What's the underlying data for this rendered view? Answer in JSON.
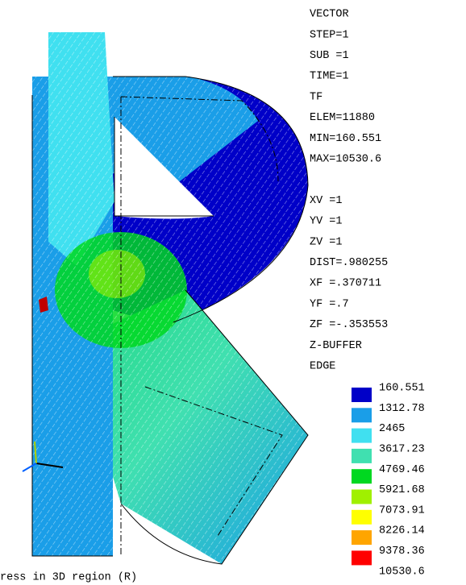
{
  "info": [
    "VECTOR",
    "STEP=1",
    "SUB =1",
    "TIME=1",
    "TF",
    "ELEM=11880",
    "MIN=160.551",
    "MAX=10530.6",
    "XV  =1",
    "YV  =1",
    "ZV  =1",
    "DIST=.980255",
    "XF  =.370711",
    "YF  =.7",
    "ZF  =-.353553",
    "Z-BUFFER",
    "EDGE"
  ],
  "legend": {
    "colors": [
      "#0000c8",
      "#1a9ee8",
      "#40e0f0",
      "#40e0b0",
      "#00d820",
      "#a0f000",
      "#ffff00",
      "#ffa500",
      "#ff0000"
    ],
    "labels": [
      "160.551",
      "1312.78",
      "2465",
      "3617.23",
      "4769.46",
      "5921.68",
      "7073.91",
      "8226.14",
      "9378.36",
      "10530.6"
    ]
  },
  "caption": "ress in 3D region (R)"
}
